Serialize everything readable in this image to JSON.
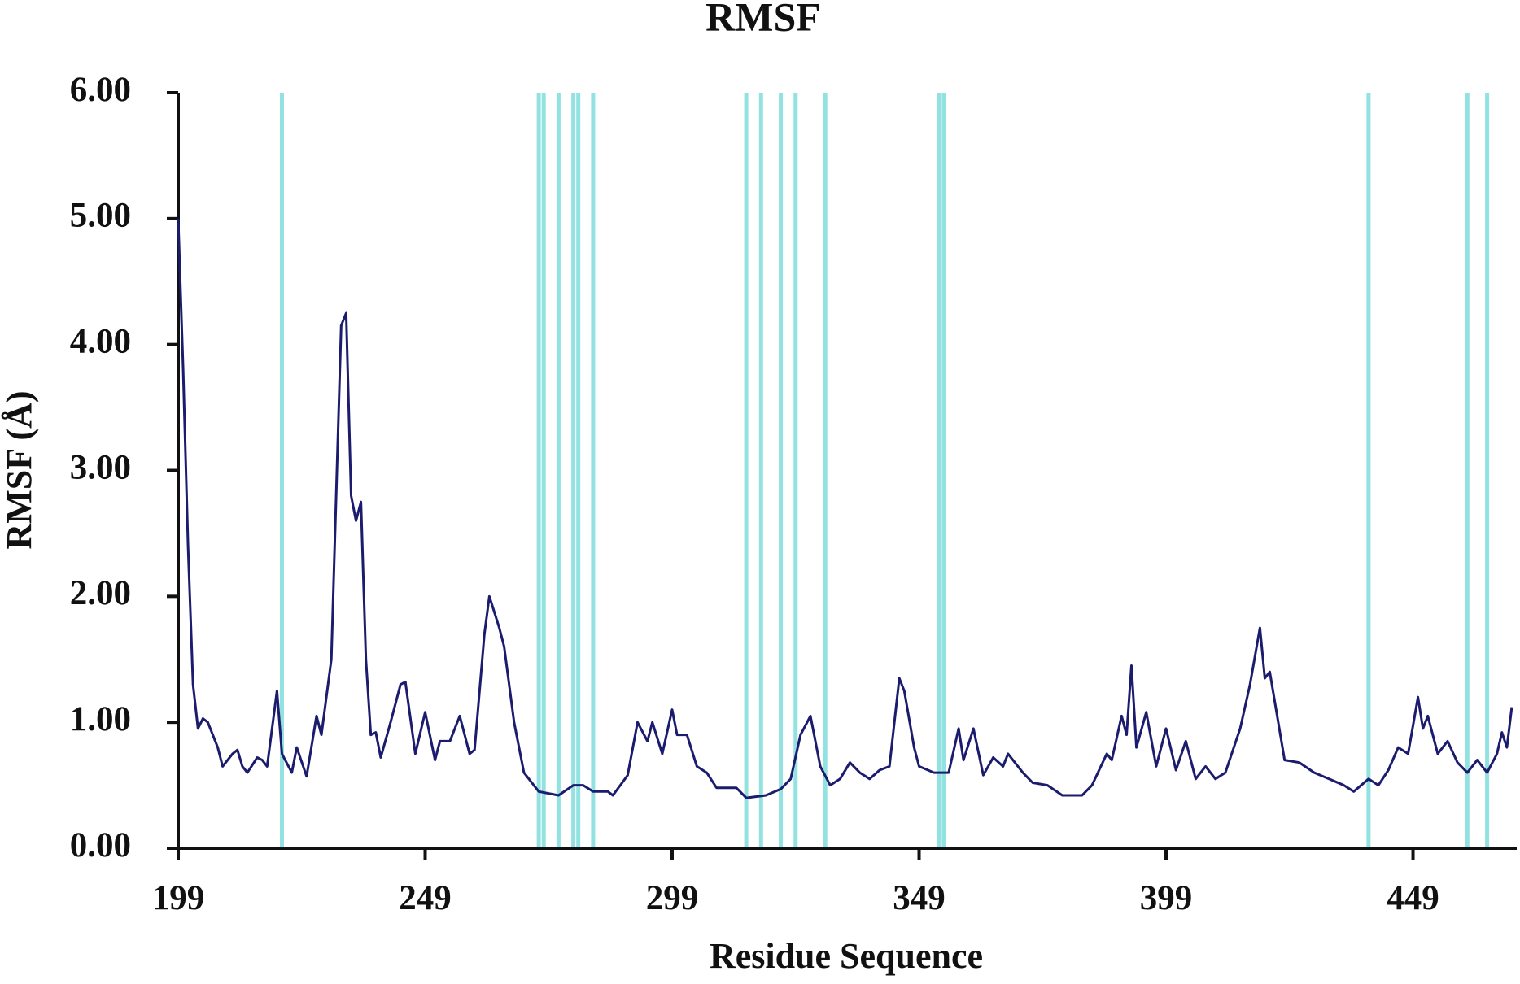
{
  "chart_data": {
    "type": "line",
    "title": "RMSF",
    "x_label": "Residue Sequence",
    "y_label": "RMSF (Å)",
    "xlim": [
      199,
      470
    ],
    "ylim": [
      0,
      6
    ],
    "xticks": [
      199,
      249,
      299,
      349,
      399,
      449
    ],
    "yticks": [
      {
        "value": 0,
        "label": "0.00"
      },
      {
        "value": 1,
        "label": "1.00"
      },
      {
        "value": 2,
        "label": "2.00"
      },
      {
        "value": 3,
        "label": "3.00"
      },
      {
        "value": 4,
        "label": "4.00"
      },
      {
        "value": 5,
        "label": "5.00"
      },
      {
        "value": 6,
        "label": "6.00"
      }
    ],
    "highlights": {
      "color": "#7fdede",
      "x": [
        220,
        272,
        273,
        276,
        279,
        280,
        283,
        314,
        317,
        321,
        324,
        330,
        353,
        354,
        440,
        460,
        464
      ]
    },
    "series": [
      {
        "color": "#1c1c6e",
        "x": [
          199,
          200,
          201,
          202,
          203,
          204,
          205,
          207,
          208,
          210,
          211,
          212,
          213,
          215,
          216,
          217,
          219,
          220,
          222,
          223,
          225,
          227,
          228,
          230,
          232,
          233,
          234,
          235,
          236,
          237,
          238,
          239,
          240,
          242,
          244,
          245,
          247,
          249,
          251,
          252,
          254,
          256,
          258,
          259,
          261,
          262,
          264,
          265,
          267,
          269,
          272,
          276,
          279,
          281,
          283,
          286,
          287,
          290,
          292,
          294,
          295,
          297,
          299,
          300,
          302,
          304,
          306,
          308,
          312,
          314,
          318,
          321,
          323,
          325,
          327,
          329,
          331,
          333,
          335,
          337,
          339,
          341,
          343,
          345,
          346,
          348,
          349,
          352,
          355,
          357,
          358,
          360,
          362,
          364,
          366,
          367,
          370,
          372,
          375,
          378,
          382,
          384,
          387,
          388,
          390,
          391,
          392,
          393,
          395,
          397,
          399,
          401,
          403,
          405,
          407,
          409,
          411,
          414,
          416,
          418,
          419,
          420,
          423,
          426,
          429,
          432,
          435,
          437,
          440,
          442,
          444,
          446,
          448,
          450,
          451,
          452,
          454,
          456,
          458,
          460,
          462,
          464,
          466,
          467,
          468,
          469
        ],
        "values": [
          5.0,
          3.8,
          2.4,
          1.3,
          0.95,
          1.03,
          1.0,
          0.8,
          0.65,
          0.75,
          0.78,
          0.65,
          0.6,
          0.72,
          0.7,
          0.65,
          1.25,
          0.75,
          0.6,
          0.8,
          0.57,
          1.05,
          0.9,
          1.5,
          4.15,
          4.25,
          2.8,
          2.6,
          2.75,
          1.5,
          0.9,
          0.92,
          0.72,
          1.0,
          1.3,
          1.32,
          0.75,
          1.08,
          0.7,
          0.85,
          0.85,
          1.05,
          0.75,
          0.78,
          1.7,
          2.0,
          1.75,
          1.6,
          1.0,
          0.6,
          0.45,
          0.42,
          0.5,
          0.5,
          0.45,
          0.45,
          0.42,
          0.58,
          1.0,
          0.85,
          1.0,
          0.75,
          1.1,
          0.9,
          0.9,
          0.65,
          0.6,
          0.48,
          0.48,
          0.4,
          0.42,
          0.47,
          0.55,
          0.9,
          1.05,
          0.65,
          0.5,
          0.55,
          0.68,
          0.6,
          0.55,
          0.62,
          0.65,
          1.35,
          1.25,
          0.8,
          0.65,
          0.6,
          0.6,
          0.95,
          0.7,
          0.95,
          0.58,
          0.72,
          0.65,
          0.75,
          0.6,
          0.52,
          0.5,
          0.42,
          0.42,
          0.5,
          0.75,
          0.7,
          1.05,
          0.9,
          1.45,
          0.8,
          1.08,
          0.65,
          0.95,
          0.62,
          0.85,
          0.55,
          0.65,
          0.55,
          0.6,
          0.95,
          1.3,
          1.75,
          1.35,
          1.4,
          0.7,
          0.68,
          0.6,
          0.55,
          0.5,
          0.45,
          0.55,
          0.5,
          0.62,
          0.8,
          0.75,
          1.2,
          0.95,
          1.05,
          0.75,
          0.85,
          0.68,
          0.6,
          0.7,
          0.6,
          0.75,
          0.92,
          0.8,
          1.12
        ]
      }
    ]
  }
}
